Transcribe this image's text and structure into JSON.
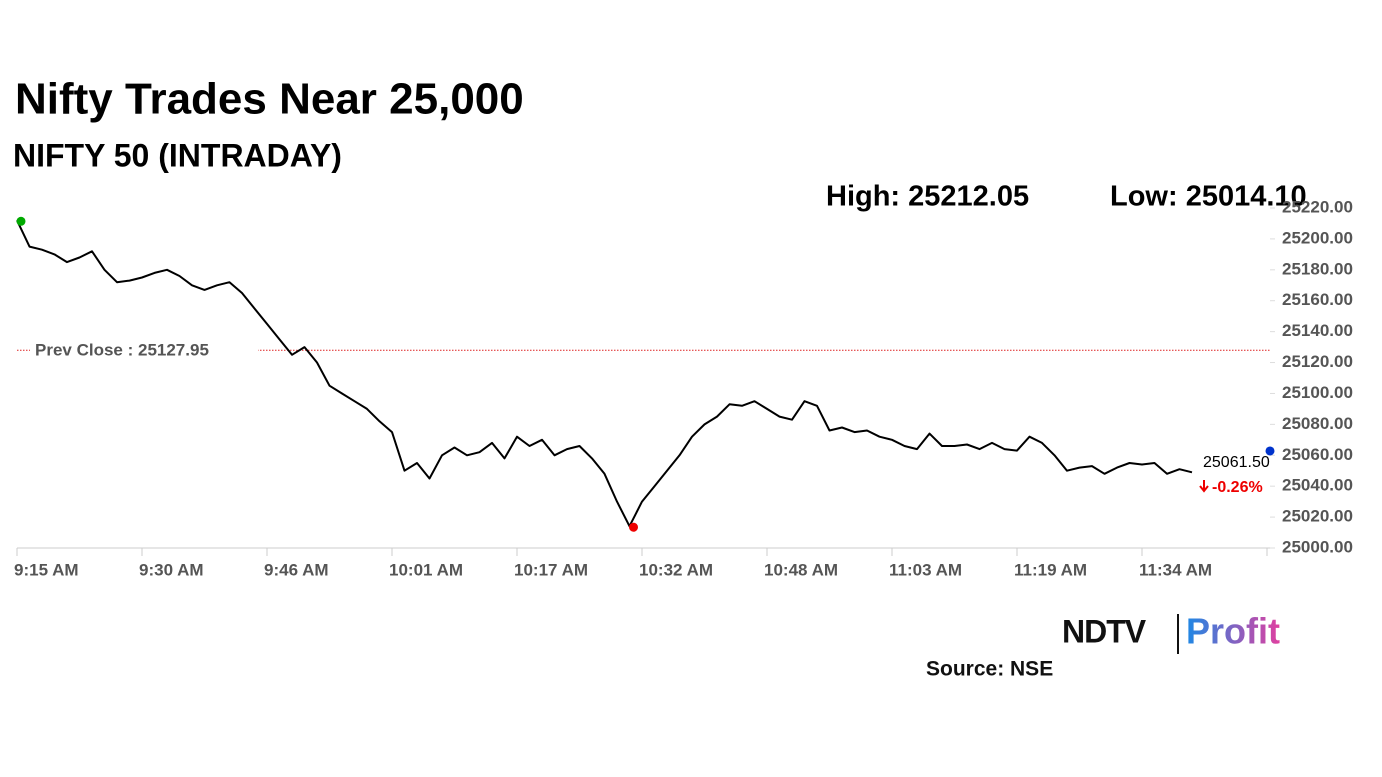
{
  "chart_data": {
    "type": "line",
    "title": "Nifty Trades Near 25,000",
    "subtitle": "NIFTY 50 (INTRADAY)",
    "high_label": "High: 25212.05",
    "low_label": "Low: 25014.10",
    "prev_close": {
      "value": 25127.95,
      "label": "Prev Close : 25127.95"
    },
    "last": {
      "value": 25061.5,
      "label": "25061.50"
    },
    "change_label": "-0.26%",
    "source": "Source: NSE",
    "logo": [
      "NDTV",
      "Profit"
    ],
    "color": "#000000",
    "categories": [
      "9:15 AM",
      null,
      null,
      null,
      null,
      null,
      null,
      null,
      null,
      null,
      "9:30 AM",
      null,
      null,
      null,
      null,
      null,
      null,
      null,
      null,
      null,
      "9:46 AM",
      null,
      null,
      null,
      null,
      null,
      null,
      null,
      null,
      null,
      "10:01 AM",
      null,
      null,
      null,
      null,
      null,
      null,
      null,
      null,
      null,
      "10:17 AM",
      null,
      null,
      null,
      null,
      null,
      null,
      null,
      null,
      null,
      "10:32 AM",
      null,
      null,
      null,
      null,
      null,
      null,
      null,
      null,
      null,
      "10:48 AM",
      null,
      null,
      null,
      null,
      null,
      null,
      null,
      null,
      null,
      "11:03 AM",
      null,
      null,
      null,
      null,
      null,
      null,
      null,
      null,
      null,
      "11:19 AM",
      null,
      null,
      null,
      null,
      null,
      null,
      null,
      null,
      null,
      "11:34 AM",
      null,
      null,
      null,
      null,
      null,
      null,
      null,
      null,
      null,
      null
    ],
    "values": [
      25212.05,
      25195,
      25193,
      25190,
      25185,
      25188,
      25192,
      25180,
      25172,
      25173,
      25175,
      25178,
      25180,
      25176,
      25170,
      25167,
      25170,
      25172,
      25165,
      25155,
      25145,
      25135,
      25125,
      25130,
      25120,
      25105,
      25100,
      25095,
      25090,
      25082,
      25075,
      25050,
      25055,
      25045,
      25060,
      25065,
      25060,
      25062,
      25068,
      25058,
      25072,
      25066,
      25070,
      25060,
      25064,
      25066,
      25058,
      25048,
      25030,
      25014.1,
      25030,
      25040,
      25050,
      25060,
      25072,
      25080,
      25085,
      25093,
      25092,
      25095,
      25090,
      25085,
      25083,
      25095,
      25092,
      25076,
      25078,
      25075,
      25076,
      25072,
      25070,
      25066,
      25064,
      25074,
      25066,
      25066,
      25067,
      25064,
      25068,
      25064,
      25063,
      25072,
      25068,
      25060,
      25050,
      25052,
      25053,
      25048,
      25052,
      25055,
      25054,
      25055,
      25048,
      25051,
      25049,
      null,
      null,
      null,
      null,
      null,
      null
    ],
    "ylim": [
      25000,
      25220
    ],
    "yticks": [
      {
        "value": 25000,
        "label": "25000.00"
      },
      {
        "value": 25020,
        "label": "25020.00"
      },
      {
        "value": 25040,
        "label": "25040.00"
      },
      {
        "value": 25060,
        "label": "25060.00"
      },
      {
        "value": 25080,
        "label": "25080.00"
      },
      {
        "value": 25100,
        "label": "25100.00"
      },
      {
        "value": 25120,
        "label": "25120.00"
      },
      {
        "value": 25140,
        "label": "25140.00"
      },
      {
        "value": 25160,
        "label": "25160.00"
      },
      {
        "value": 25180,
        "label": "25180.00"
      },
      {
        "value": 25200,
        "label": "25200.00"
      },
      {
        "value": 25220,
        "label": "25220.00"
      }
    ],
    "grid": false
  }
}
